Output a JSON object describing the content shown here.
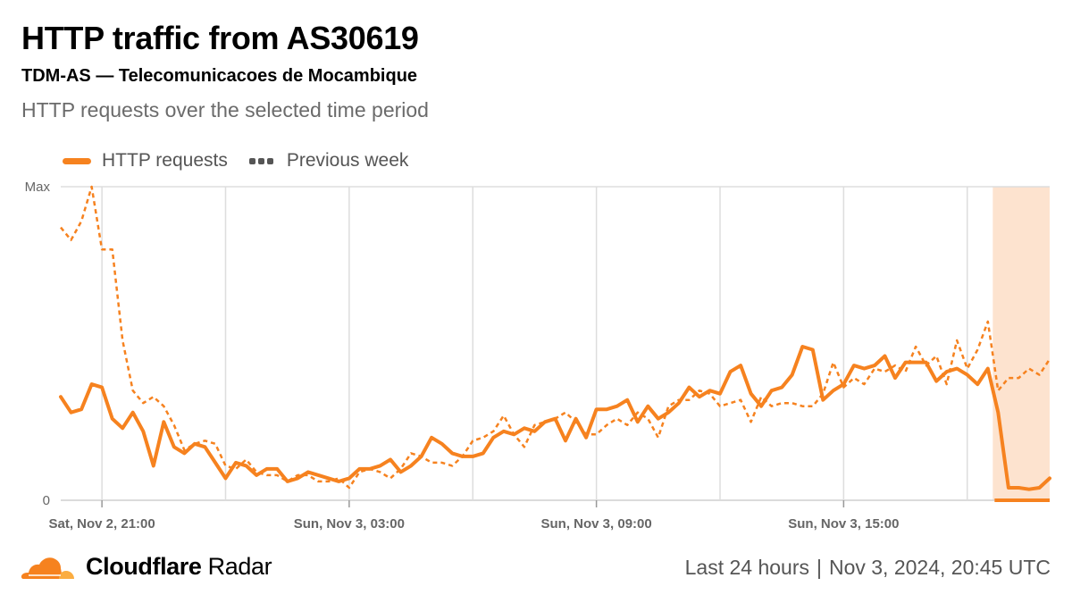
{
  "header": {
    "title": "HTTP traffic from AS30619",
    "subtitle": "TDM-AS — Telecomunicacoes de Mocambique",
    "description": "HTTP requests over the selected time period"
  },
  "footer": {
    "brand_bold": "Cloudflare",
    "brand_regular": "Radar",
    "range": "Last 24 hours",
    "timestamp": "Nov 3, 2024, 20:45 UTC"
  },
  "colors": {
    "current": "#f6821f",
    "previous": "#f6821f",
    "highlight": "#fde3cf",
    "grid": "#dddddd"
  },
  "chart_data": {
    "type": "line",
    "title": "",
    "xlabel": "",
    "ylabel": "",
    "ylim": [
      0,
      1
    ],
    "y_ticks": [
      {
        "value": 0,
        "label": "0"
      },
      {
        "value": 1,
        "label": "Max"
      }
    ],
    "x_tick_labels": [
      {
        "index": 4,
        "label": "Sat, Nov 2, 21:00"
      },
      {
        "index": 28,
        "label": "Sun, Nov 3, 03:00"
      },
      {
        "index": 52,
        "label": "Sun, Nov 3, 09:00"
      },
      {
        "index": 76,
        "label": "Sun, Nov 3, 15:00"
      }
    ],
    "highlight_from_index": 91,
    "series": [
      {
        "name": "HTTP requests",
        "values": [
          0.33,
          0.28,
          0.29,
          0.37,
          0.36,
          0.26,
          0.23,
          0.28,
          0.22,
          0.11,
          0.25,
          0.17,
          0.15,
          0.18,
          0.17,
          0.12,
          0.07,
          0.12,
          0.11,
          0.08,
          0.1,
          0.1,
          0.06,
          0.07,
          0.09,
          0.08,
          0.07,
          0.06,
          0.07,
          0.1,
          0.1,
          0.11,
          0.13,
          0.09,
          0.11,
          0.14,
          0.2,
          0.18,
          0.15,
          0.14,
          0.14,
          0.15,
          0.2,
          0.22,
          0.21,
          0.23,
          0.22,
          0.25,
          0.26,
          0.19,
          0.26,
          0.2,
          0.29,
          0.29,
          0.3,
          0.32,
          0.25,
          0.3,
          0.26,
          0.28,
          0.31,
          0.36,
          0.33,
          0.35,
          0.34,
          0.41,
          0.43,
          0.34,
          0.3,
          0.35,
          0.36,
          0.4,
          0.49,
          0.48,
          0.32,
          0.35,
          0.37,
          0.43,
          0.42,
          0.43,
          0.46,
          0.39,
          0.44,
          0.44,
          0.44,
          0.38,
          0.41,
          0.42,
          0.4,
          0.37,
          0.42,
          0.28,
          0.04,
          0.04,
          0.035,
          0.04,
          0.07
        ]
      },
      {
        "name": "Previous week",
        "values": [
          0.87,
          0.83,
          0.89,
          1.0,
          0.8,
          0.8,
          0.51,
          0.35,
          0.31,
          0.33,
          0.3,
          0.24,
          0.16,
          0.18,
          0.19,
          0.18,
          0.11,
          0.1,
          0.13,
          0.09,
          0.08,
          0.08,
          0.06,
          0.08,
          0.08,
          0.06,
          0.06,
          0.07,
          0.04,
          0.09,
          0.1,
          0.09,
          0.07,
          0.1,
          0.15,
          0.14,
          0.12,
          0.12,
          0.11,
          0.14,
          0.19,
          0.2,
          0.22,
          0.27,
          0.21,
          0.17,
          0.24,
          0.25,
          0.26,
          0.28,
          0.25,
          0.21,
          0.21,
          0.24,
          0.26,
          0.24,
          0.28,
          0.26,
          0.2,
          0.3,
          0.32,
          0.32,
          0.35,
          0.34,
          0.3,
          0.31,
          0.32,
          0.25,
          0.33,
          0.3,
          0.31,
          0.31,
          0.3,
          0.3,
          0.34,
          0.44,
          0.36,
          0.39,
          0.37,
          0.42,
          0.41,
          0.43,
          0.41,
          0.49,
          0.43,
          0.46,
          0.37,
          0.51,
          0.42,
          0.48,
          0.57,
          0.35,
          0.39,
          0.39,
          0.42,
          0.4,
          0.45
        ]
      }
    ]
  }
}
